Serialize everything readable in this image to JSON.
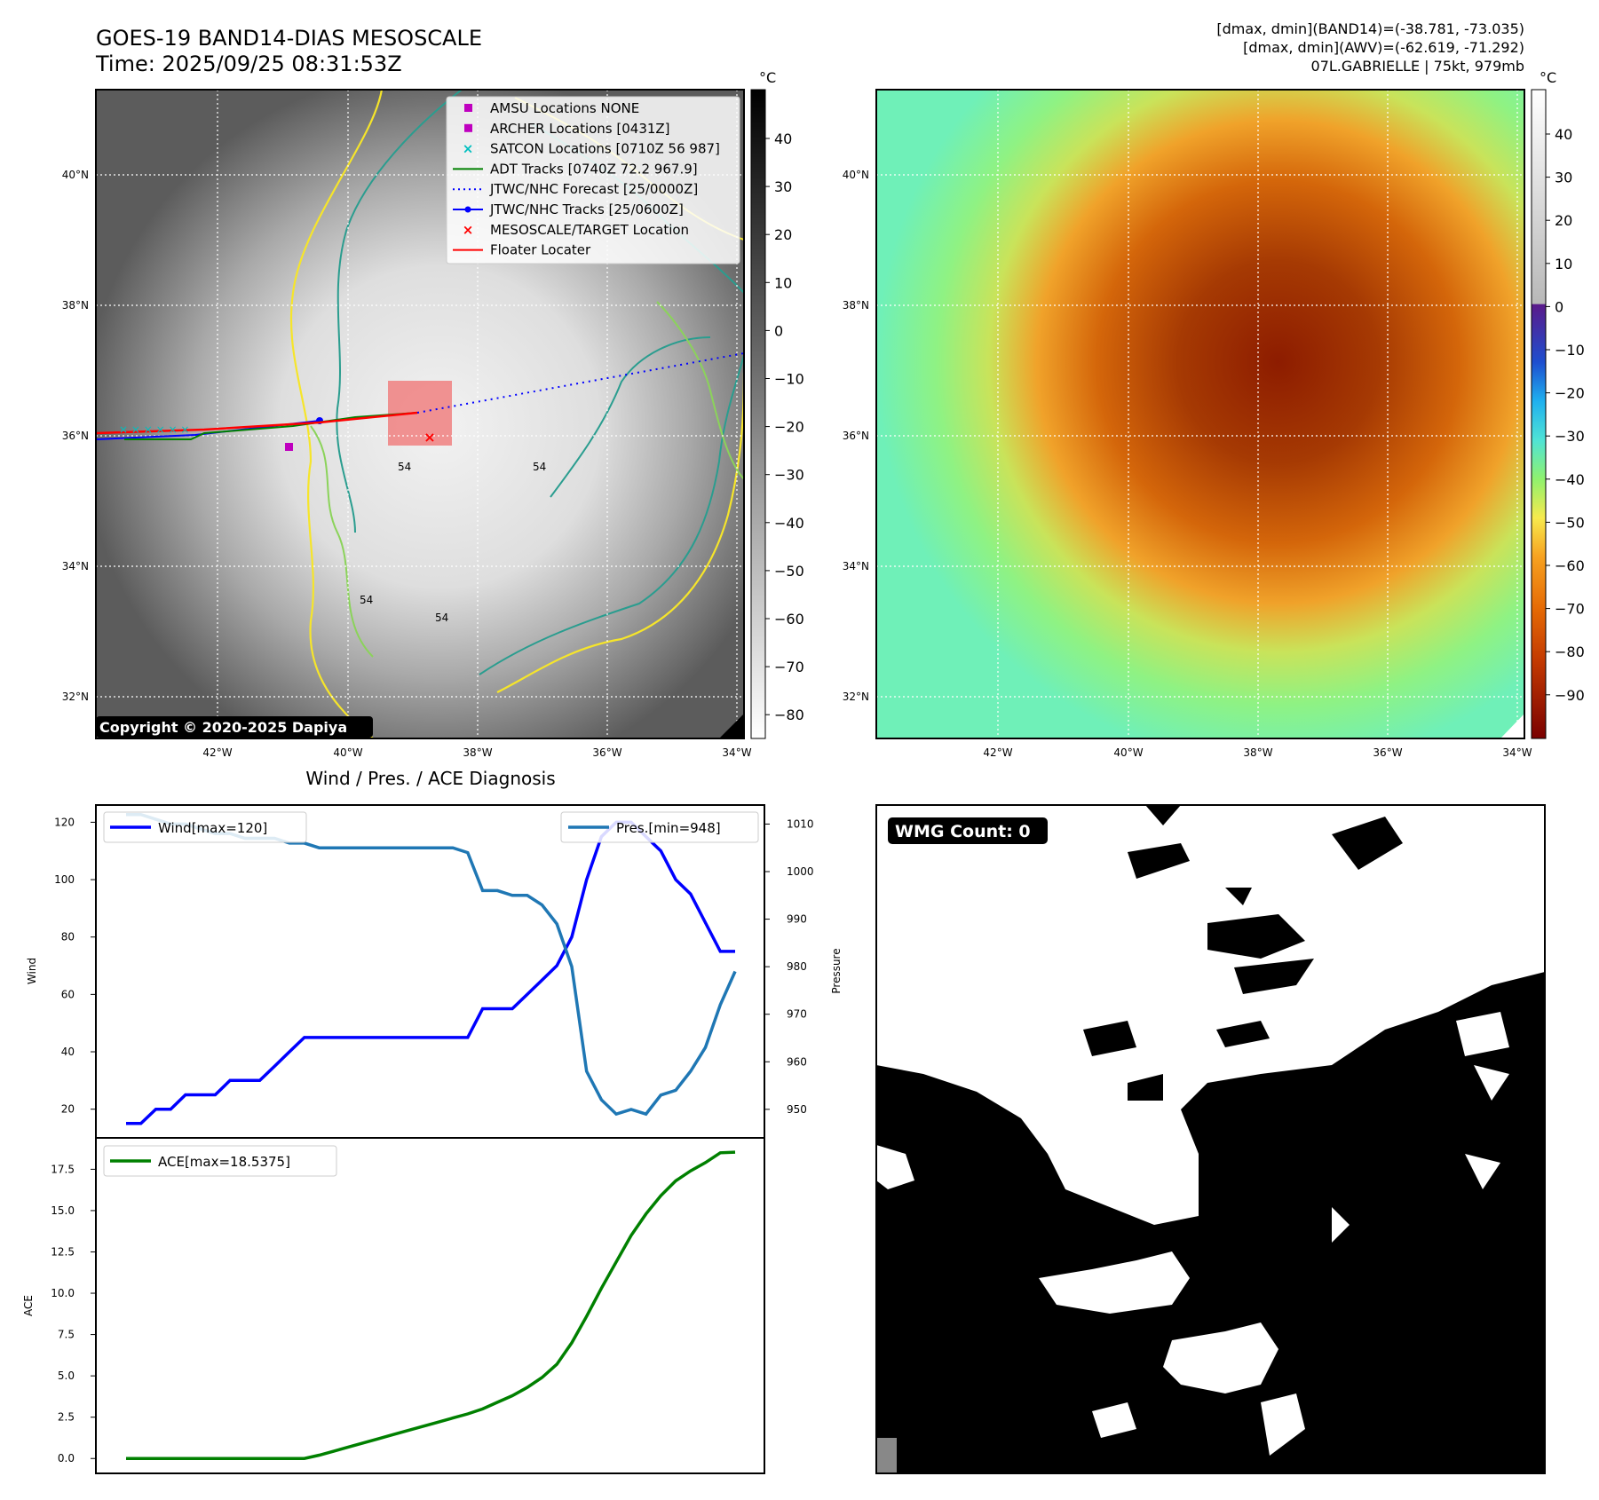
{
  "header": {
    "title_line1": "GOES-19 BAND14-DIAS MESOSCALE",
    "title_line2": "Time: 2025/09/25 08:31:53Z",
    "info_line1": "[dmax, dmin](BAND14)=(-38.781, -73.035)",
    "info_line2": "[dmax, dmin](AWV)=(-62.619, -71.292)",
    "info_line3": "07L.GABRIELLE | 75kt, 979mb"
  },
  "map": {
    "lat_labels": [
      "40°N",
      "38°N",
      "36°N",
      "34°N",
      "32°N"
    ],
    "lon_labels": [
      "42°W",
      "40°W",
      "38°W",
      "36°W",
      "34°W"
    ],
    "copyright": "Copyright © 2020-2025 Dapiya",
    "contour_labels": [
      "54",
      "54",
      "54",
      "54"
    ],
    "colorbar_unit": "°C",
    "colorbar1_ticks": [
      "40",
      "30",
      "20",
      "10",
      "0",
      "−10",
      "−20",
      "−30",
      "−40",
      "−50",
      "−60",
      "−70",
      "−80"
    ],
    "colorbar2_ticks": [
      "40",
      "30",
      "20",
      "10",
      "0",
      "−10",
      "−20",
      "−30",
      "−40",
      "−50",
      "−60",
      "−70",
      "−80",
      "−90"
    ],
    "legend": [
      {
        "label": "AMSU Locations NONE",
        "color": "#bf00bf",
        "kind": "square"
      },
      {
        "label": "ARCHER Locations [0431Z]",
        "color": "#bf00bf",
        "kind": "square"
      },
      {
        "label": "SATCON Locations [0710Z 56 987]",
        "color": "#00bfbf",
        "kind": "x"
      },
      {
        "label": "ADT Tracks [0740Z 72.2 967.9]",
        "color": "#008000",
        "kind": "line"
      },
      {
        "label": "JTWC/NHC Forecast [25/0000Z]",
        "color": "#0000ff",
        "kind": "dotted"
      },
      {
        "label": "JTWC/NHC Tracks [25/0600Z]",
        "color": "#0000ff",
        "kind": "dotline"
      },
      {
        "label": "MESOSCALE/TARGET Location",
        "color": "#ff0000",
        "kind": "redx"
      },
      {
        "label": "Floater Locater",
        "color": "#ff0000",
        "kind": "line"
      }
    ]
  },
  "wmg": {
    "label": "WMG Count: 0"
  },
  "chart_data": [
    {
      "type": "line",
      "title": "Wind / Pres. / ACE Diagnosis",
      "ylabel": "Wind",
      "ylabel_right": "Pressure",
      "ylim": [
        10,
        126
      ],
      "ylim_right": [
        944,
        1014
      ],
      "yticks": [
        20,
        40,
        60,
        80,
        100,
        120
      ],
      "yticks_right": [
        950,
        960,
        970,
        980,
        990,
        1000,
        1010
      ],
      "series": [
        {
          "name": "Wind[max=120]",
          "color": "#0000ff",
          "axis": "left",
          "values": [
            15,
            15,
            20,
            20,
            25,
            25,
            25,
            30,
            30,
            30,
            35,
            40,
            45,
            45,
            45,
            45,
            45,
            45,
            45,
            45,
            45,
            45,
            45,
            45,
            55,
            55,
            55,
            60,
            65,
            70,
            80,
            100,
            115,
            120,
            120,
            115,
            110,
            100,
            95,
            85,
            75,
            75
          ]
        },
        {
          "name": "Pres.[min=948]",
          "color": "#1f77b4",
          "axis": "right",
          "values": [
            1012,
            1012,
            1011,
            1010,
            1010,
            1009,
            1008,
            1008,
            1007,
            1007,
            1007,
            1006,
            1006,
            1005,
            1005,
            1005,
            1005,
            1005,
            1005,
            1005,
            1005,
            1005,
            1005,
            1004,
            996,
            996,
            995,
            995,
            993,
            989,
            980,
            958,
            952,
            949,
            950,
            949,
            953,
            954,
            958,
            963,
            972,
            979
          ]
        }
      ]
    },
    {
      "type": "line",
      "ylabel": "ACE",
      "ylim": [
        -0.9,
        19.4
      ],
      "yticks": [
        "0.0",
        "2.5",
        "5.0",
        "7.5",
        "10.0",
        "12.5",
        "15.0",
        "17.5"
      ],
      "series": [
        {
          "name": "ACE[max=18.5375]",
          "color": "#008000",
          "values": [
            0,
            0,
            0,
            0,
            0,
            0,
            0,
            0,
            0,
            0,
            0,
            0,
            0,
            0.2,
            0.45,
            0.7,
            0.95,
            1.2,
            1.45,
            1.7,
            1.95,
            2.2,
            2.45,
            2.7,
            3.0,
            3.4,
            3.8,
            4.3,
            4.9,
            5.7,
            7.0,
            8.6,
            10.3,
            11.9,
            13.5,
            14.8,
            15.9,
            16.8,
            17.4,
            17.9,
            18.5,
            18.5375
          ]
        }
      ]
    }
  ]
}
